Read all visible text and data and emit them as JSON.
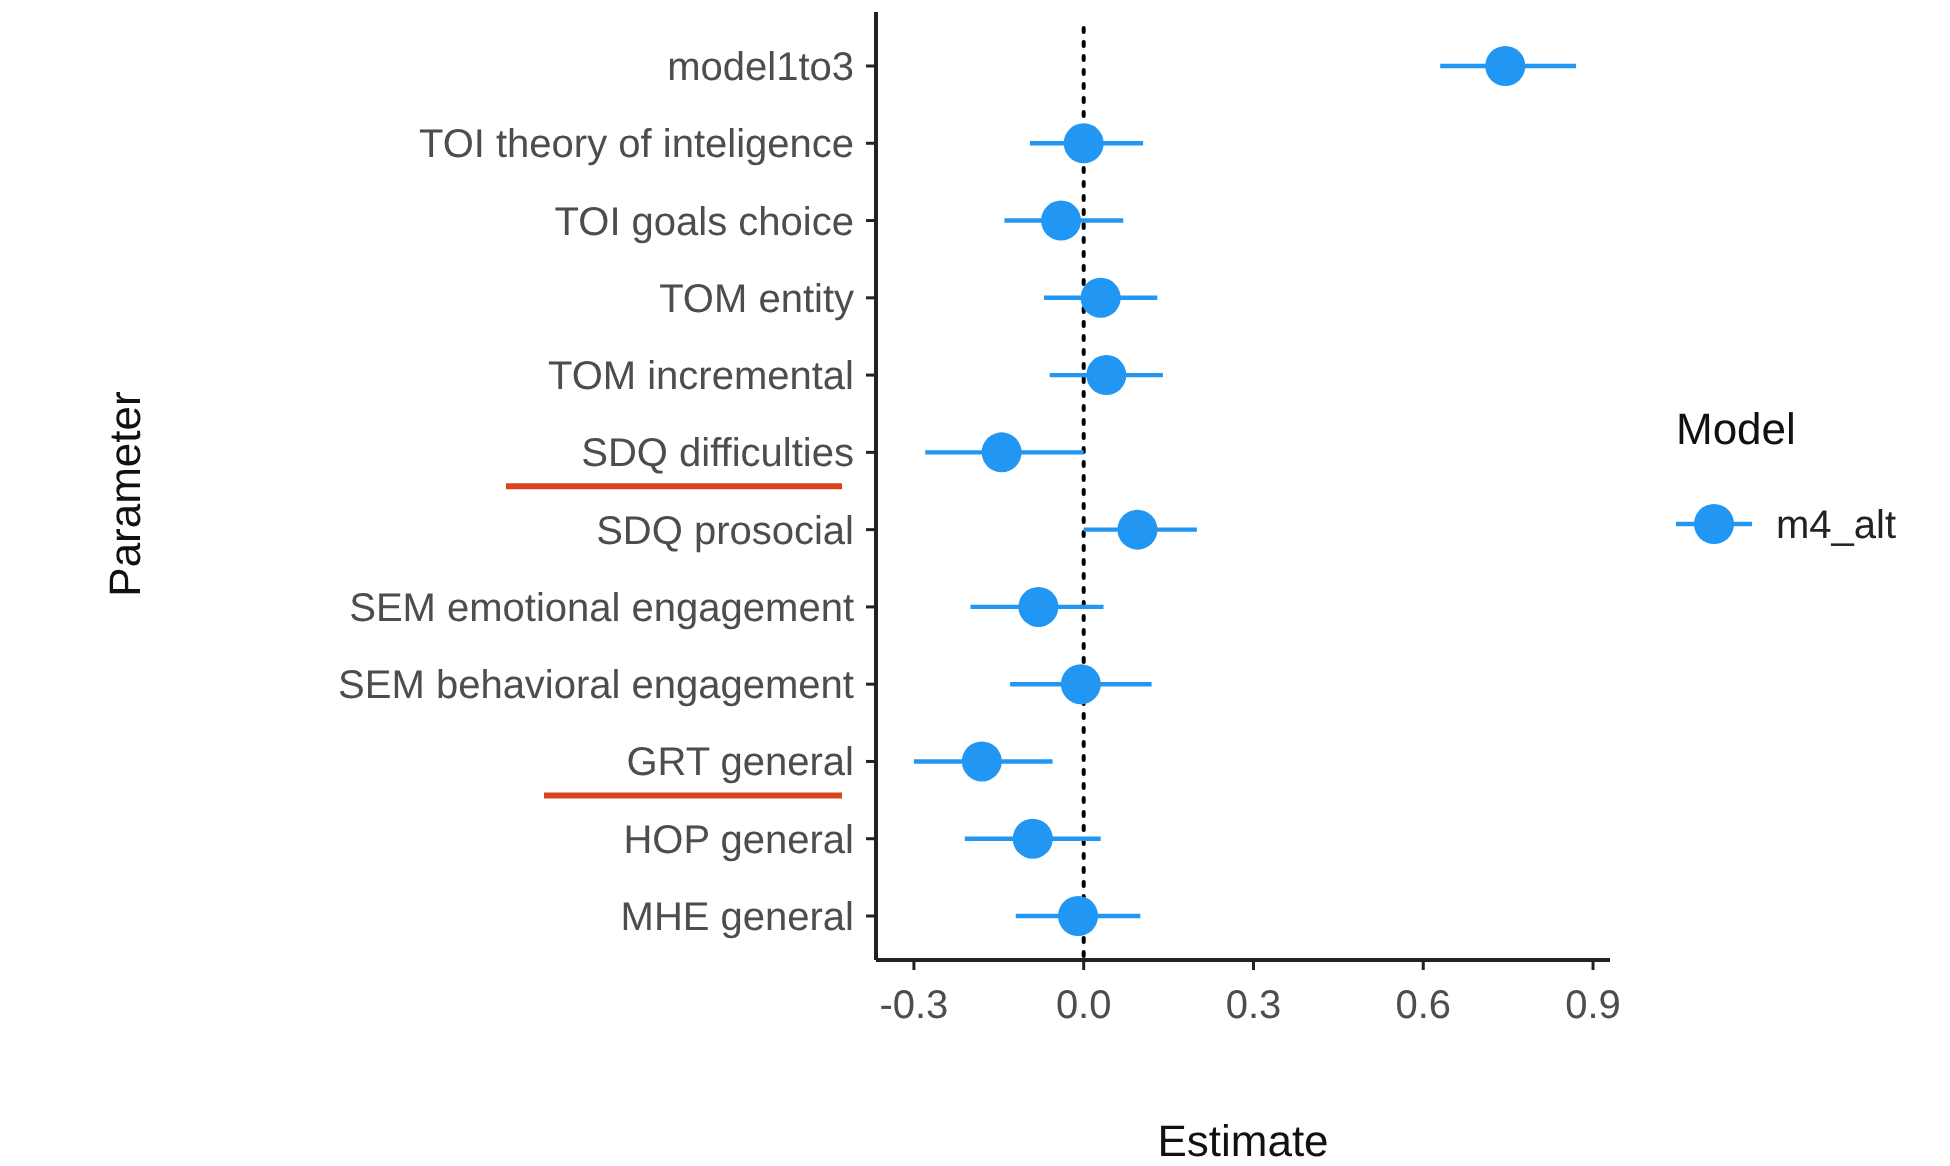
{
  "chart_data": {
    "type": "scatter",
    "orientation": "horizontal",
    "xlabel": "Estimate",
    "ylabel": "Parameter",
    "legend_title": "Model",
    "legend": "right",
    "marker": "circle",
    "categories": [
      "model1to3",
      "TOI theory of inteligence",
      "TOI goals choice",
      "TOM entity",
      "TOM incremental",
      "SDQ difficulties",
      "SDQ prosocial",
      "SEM emotional engagement",
      "SEM behavioral engagement",
      "GRT general",
      "HOP general",
      "MHE general"
    ],
    "series": [
      {
        "name": "m4_alt",
        "color": "#2196f3",
        "values": [
          0.745,
          0.0,
          -0.04,
          0.03,
          0.04,
          -0.145,
          0.095,
          -0.08,
          -0.005,
          -0.18,
          -0.09,
          -0.01
        ],
        "errors": [
          [
            0.63,
            0.87
          ],
          [
            -0.095,
            0.105
          ],
          [
            -0.14,
            0.07
          ],
          [
            -0.07,
            0.13
          ],
          [
            -0.06,
            0.14
          ],
          [
            -0.28,
            0.0
          ],
          [
            0.0,
            0.2
          ],
          [
            -0.2,
            0.035
          ],
          [
            -0.13,
            0.12
          ],
          [
            -0.3,
            -0.055
          ],
          [
            -0.21,
            0.03
          ],
          [
            -0.12,
            0.1
          ]
        ]
      }
    ],
    "xlim": [
      -0.367,
      0.93
    ],
    "xticks": [
      {
        "value": -0.3,
        "label": "-0.3"
      },
      {
        "value": 0,
        "label": "0.0"
      },
      0.3,
      0.6,
      0.9
    ],
    "ref_lines": [
      {
        "axis": "x",
        "value": 0,
        "line_style": "dotted",
        "color": "#000000"
      }
    ]
  }
}
